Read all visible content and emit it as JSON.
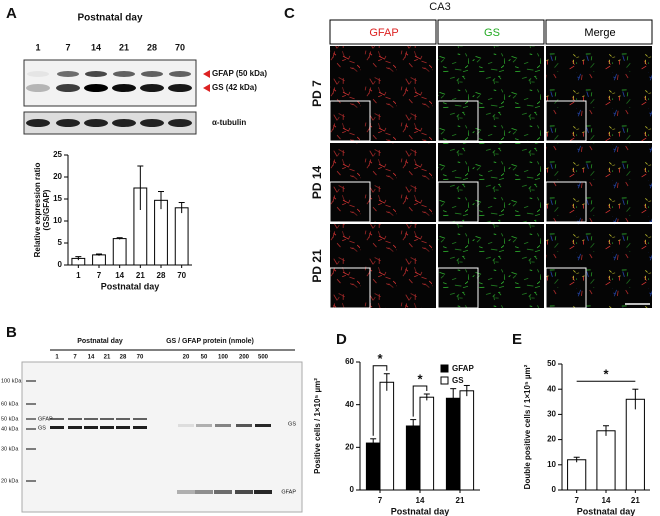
{
  "panel_letters": [
    "A",
    "B",
    "C",
    "D",
    "E"
  ],
  "panel_a": {
    "header": "Postnatal day",
    "lanes": [
      "1",
      "7",
      "14",
      "21",
      "28",
      "70"
    ],
    "bands": [
      "GFAP (50 kDa)",
      "GS (42 kDa)"
    ],
    "loading": "α-tubulin"
  },
  "panel_b": {
    "header_left": "Postnatal day",
    "header_right": "GS / GFAP protein (nmole)",
    "lanes": [
      "1",
      "7",
      "14",
      "21",
      "28",
      "70",
      "20",
      "50",
      "100",
      "200",
      "500"
    ],
    "markers": [
      "100 kDa",
      "60 kDa",
      "50 kDa",
      "40 kDa",
      "30 kDa",
      "20 kDa"
    ],
    "band_labels_left": [
      "GFAP",
      "GS"
    ],
    "band_labels_right": [
      "GS",
      "GFAP"
    ]
  },
  "panel_c": {
    "title": "CA3",
    "columns": [
      "GFAP",
      "GS",
      "Merge"
    ],
    "rows": [
      "PD 7",
      "PD 14",
      "PD 21"
    ]
  },
  "chart_data": [
    {
      "type": "bar",
      "x_label": "Postnatal day",
      "y_label": [
        "Relative expression ratio",
        "(GS/GFAP)"
      ],
      "categories": [
        "1",
        "7",
        "14",
        "21",
        "28",
        "70"
      ],
      "values": [
        1.5,
        2.3,
        6,
        17.5,
        14.7,
        13
      ],
      "errors": [
        0.4,
        0.2,
        0.2,
        5,
        2,
        1.2
      ],
      "color": "#ffffff",
      "ylim": [
        0,
        25
      ],
      "yticks": [
        0,
        5,
        10,
        15,
        20,
        25
      ]
    },
    {
      "type": "bar",
      "x_label": "Postnatal day",
      "y_label": "Positive cells / 1×10⁵ µm²",
      "categories": [
        "7",
        "14",
        "21"
      ],
      "series": [
        {
          "name": "GFAP",
          "color": "#000000",
          "values": [
            22,
            30,
            43
          ],
          "errors": [
            2,
            3,
            4.5
          ]
        },
        {
          "name": "GS",
          "color": "#ffffff",
          "values": [
            50.5,
            43.5,
            46.5
          ],
          "errors": [
            4,
            1.5,
            2.5
          ]
        }
      ],
      "ylim": [
        0,
        60
      ],
      "yticks": [
        0,
        20,
        40,
        60
      ],
      "annotations": [
        "*",
        "*"
      ]
    },
    {
      "type": "bar",
      "x_label": "Postnatal day",
      "y_label": "Double positive cells / 1×10⁵ µm²",
      "categories": [
        "7",
        "14",
        "21"
      ],
      "values": [
        12,
        23.5,
        36
      ],
      "errors": [
        1,
        2,
        4
      ],
      "color": "#ffffff",
      "ylim": [
        0,
        50
      ],
      "yticks": [
        0,
        10,
        20,
        30,
        40,
        50
      ],
      "annotations": [
        "*"
      ]
    }
  ]
}
